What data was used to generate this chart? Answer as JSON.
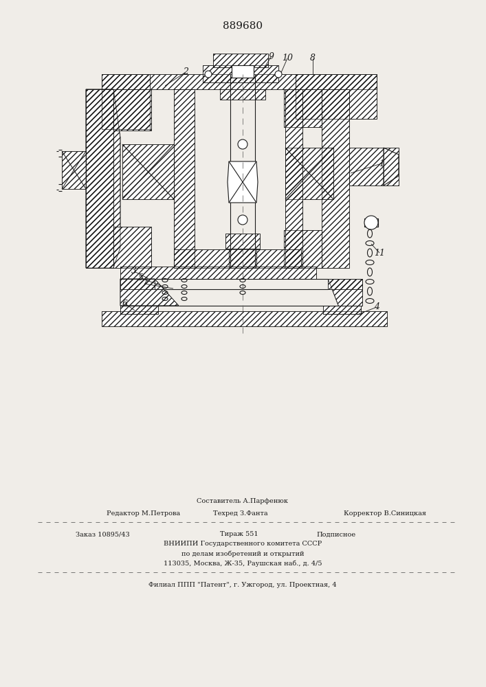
{
  "patent_number": "889680",
  "bg_color": "#f0ede8",
  "line_color": "#1a1a1a",
  "fig_width": 7.07,
  "fig_height": 10.0,
  "dpi": 100,
  "footer_line1_center": "Составитель А.Парфенюк",
  "footer_line1_left": "Редактор М.Петрова",
  "footer_line2_center": "Техред З.Фанта",
  "footer_line2_right": "Корректор В.Синицкая",
  "footer_line3_left": "Заказ 10895/43",
  "footer_line3_mid": "Тираж 551",
  "footer_line3_right": "Подписное",
  "footer_line4": "ВНИИПИ Государственного комитета СССР",
  "footer_line5": "по делам изобретений и открытий",
  "footer_line6": "113035, Москва, Ж-35, Раушская наб., д. 4/5",
  "footer_line7": "Филиал ППП \"Патент\", г. Ужгород, ул. Проектная, 4"
}
